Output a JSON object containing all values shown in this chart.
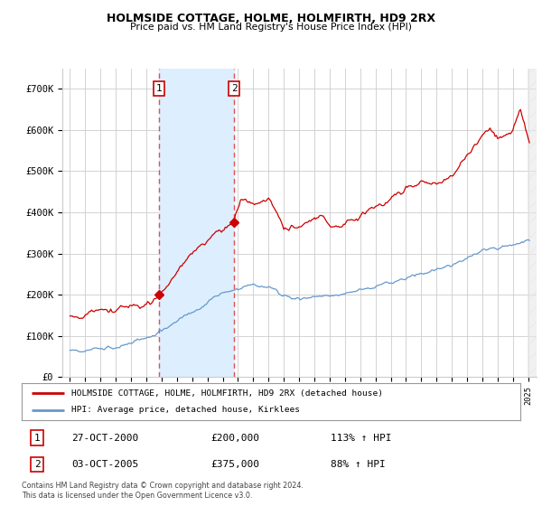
{
  "title": "HOLMSIDE COTTAGE, HOLME, HOLMFIRTH, HD9 2RX",
  "subtitle": "Price paid vs. HM Land Registry's House Price Index (HPI)",
  "legend_line1": "HOLMSIDE COTTAGE, HOLME, HOLMFIRTH, HD9 2RX (detached house)",
  "legend_line2": "HPI: Average price, detached house, Kirklees",
  "transaction1_label": "1",
  "transaction1_date": "27-OCT-2000",
  "transaction1_price": 200000,
  "transaction1_price_str": "£200,000",
  "transaction1_hpi": "113% ↑ HPI",
  "transaction2_label": "2",
  "transaction2_date": "03-OCT-2005",
  "transaction2_price": 375000,
  "transaction2_price_str": "£375,000",
  "transaction2_hpi": "88% ↑ HPI",
  "footer": "Contains HM Land Registry data © Crown copyright and database right 2024.\nThis data is licensed under the Open Government Licence v3.0.",
  "red_line_color": "#cc0000",
  "blue_line_color": "#6699cc",
  "shade_color": "#ddeeff",
  "dashed_line_color": "#e05050",
  "marker_color": "#cc0000",
  "grid_color": "#cccccc",
  "background_color": "#ffffff",
  "ylim": [
    0,
    750000
  ],
  "yticks": [
    0,
    100000,
    200000,
    300000,
    400000,
    500000,
    600000,
    700000
  ],
  "ytick_labels": [
    "£0",
    "£100K",
    "£200K",
    "£300K",
    "£400K",
    "£500K",
    "£600K",
    "£700K"
  ],
  "x_start_year": 1995,
  "x_end_year": 2025,
  "transaction1_x": 2000.82,
  "transaction2_x": 2005.75
}
